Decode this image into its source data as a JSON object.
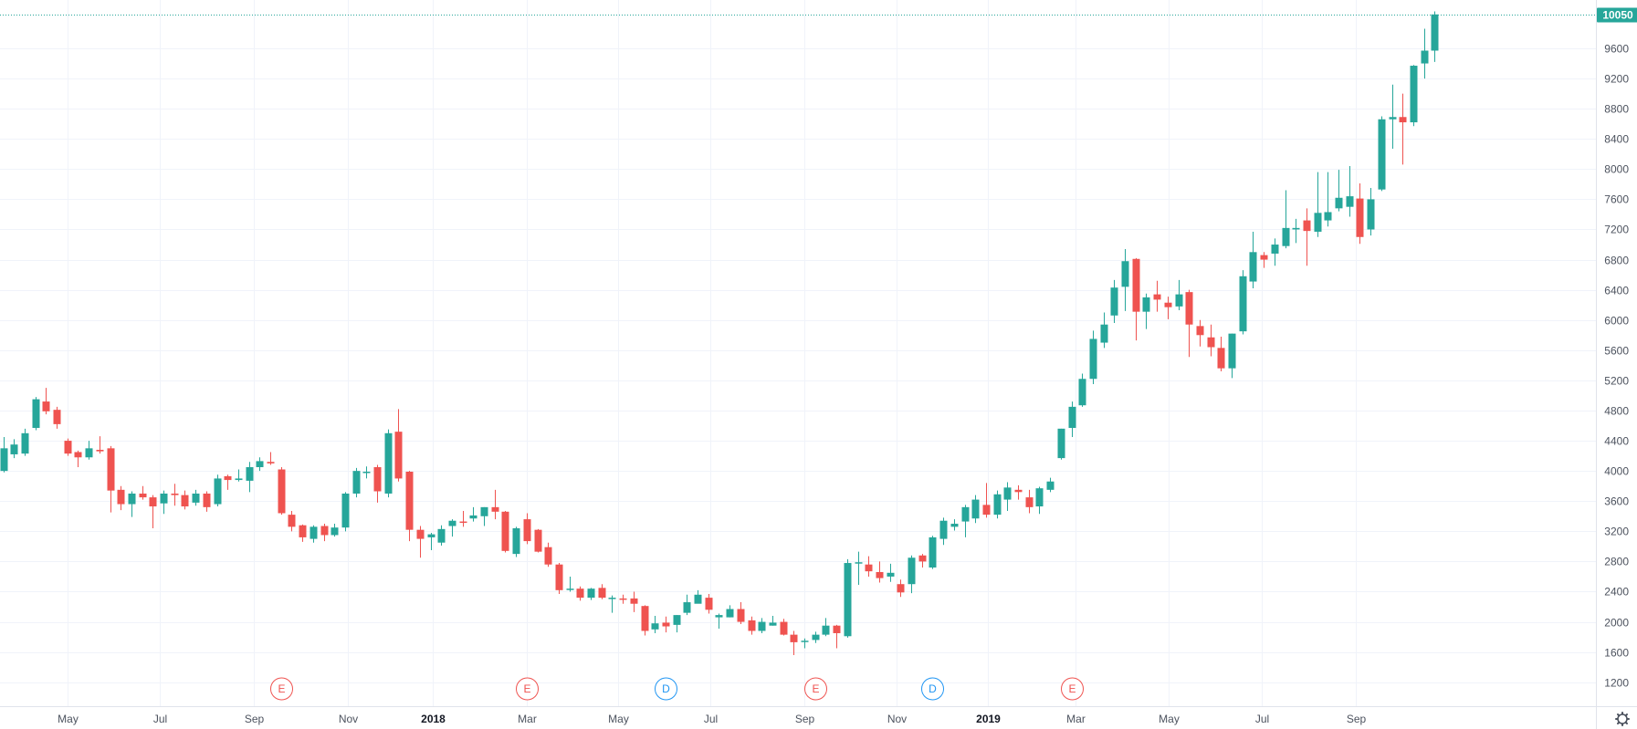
{
  "chart_data": {
    "type": "candlestick",
    "colors": {
      "up": "#26a69a",
      "down": "#ef5350",
      "grid": "#f0f3fa",
      "axis_text": "#4c525e",
      "last_price_line": "#26a69a",
      "earnings": "#ef5350",
      "dividend": "#2196f3"
    },
    "ylim": [
      1100,
      10120
    ],
    "yticks": [
      "1200",
      "1600",
      "2000",
      "2400",
      "2800",
      "3200",
      "3600",
      "4000",
      "4400",
      "4800",
      "5200",
      "5600",
      "6000",
      "6400",
      "6800",
      "7200",
      "7600",
      "8000",
      "8400",
      "8800",
      "9200",
      "9600"
    ],
    "xticks": [
      {
        "label": "May",
        "index": 6,
        "bold": false
      },
      {
        "label": "Jul",
        "index": 14.7,
        "bold": false
      },
      {
        "label": "Sep",
        "index": 23.5,
        "bold": false
      },
      {
        "label": "Nov",
        "index": 32.3,
        "bold": false
      },
      {
        "label": "2018",
        "index": 40.2,
        "bold": true
      },
      {
        "label": "Mar",
        "index": 49,
        "bold": false
      },
      {
        "label": "May",
        "index": 57.6,
        "bold": false
      },
      {
        "label": "Jul",
        "index": 66.2,
        "bold": false
      },
      {
        "label": "Sep",
        "index": 75,
        "bold": false
      },
      {
        "label": "Nov",
        "index": 83.6,
        "bold": false
      },
      {
        "label": "2019",
        "index": 92.2,
        "bold": true
      },
      {
        "label": "Mar",
        "index": 100.4,
        "bold": false
      },
      {
        "label": "May",
        "index": 109.1,
        "bold": false
      },
      {
        "label": "Jul",
        "index": 117.8,
        "bold": false
      },
      {
        "label": "Sep",
        "index": 126.6,
        "bold": false
      }
    ],
    "last_price": "10050",
    "events": [
      {
        "label": "E",
        "kind": "earnings",
        "index": 26
      },
      {
        "label": "E",
        "kind": "earnings",
        "index": 49
      },
      {
        "label": "D",
        "kind": "dividend",
        "index": 62
      },
      {
        "label": "E",
        "kind": "earnings",
        "index": 76
      },
      {
        "label": "D",
        "kind": "dividend",
        "index": 87
      },
      {
        "label": "E",
        "kind": "earnings",
        "index": 100
      }
    ],
    "candles": [
      [
        4000,
        4300,
        4450,
        3980
      ],
      [
        4220,
        4350,
        4420,
        4170
      ],
      [
        4230,
        4500,
        4560,
        4200
      ],
      [
        4570,
        4950,
        4980,
        4540
      ],
      [
        4920,
        4790,
        5100,
        4750
      ],
      [
        4810,
        4620,
        4850,
        4560
      ],
      [
        4400,
        4230,
        4430,
        4200
      ],
      [
        4250,
        4180,
        4270,
        4050
      ],
      [
        4180,
        4300,
        4400,
        4150
      ],
      [
        4280,
        4260,
        4460,
        4230
      ],
      [
        4300,
        3740,
        4330,
        3450
      ],
      [
        3750,
        3560,
        3800,
        3480
      ],
      [
        3560,
        3700,
        3730,
        3390
      ],
      [
        3700,
        3650,
        3800,
        3620
      ],
      [
        3650,
        3530,
        3680,
        3240
      ],
      [
        3570,
        3700,
        3740,
        3430
      ],
      [
        3700,
        3680,
        3830,
        3540
      ],
      [
        3680,
        3530,
        3740,
        3490
      ],
      [
        3580,
        3700,
        3750,
        3540
      ],
      [
        3700,
        3520,
        3730,
        3460
      ],
      [
        3560,
        3900,
        3950,
        3530
      ],
      [
        3930,
        3880,
        3950,
        3750
      ],
      [
        3880,
        3900,
        4020,
        3860
      ],
      [
        3870,
        4050,
        4120,
        3720
      ],
      [
        4050,
        4130,
        4180,
        4000
      ],
      [
        4120,
        4100,
        4250,
        4080
      ],
      [
        4020,
        3440,
        4050,
        3420
      ],
      [
        3420,
        3260,
        3470,
        3200
      ],
      [
        3280,
        3120,
        3290,
        3060
      ],
      [
        3100,
        3260,
        3280,
        3050
      ],
      [
        3270,
        3150,
        3300,
        3070
      ],
      [
        3150,
        3250,
        3300,
        3130
      ],
      [
        3250,
        3700,
        3720,
        3200
      ],
      [
        3700,
        4000,
        4040,
        3650
      ],
      [
        3990,
        3990,
        4060,
        3900
      ],
      [
        4050,
        3730,
        4080,
        3580
      ],
      [
        3700,
        4500,
        4550,
        3650
      ],
      [
        4520,
        3900,
        4820,
        3860
      ],
      [
        3990,
        3220,
        4000,
        3070
      ],
      [
        3220,
        3100,
        3270,
        2850
      ],
      [
        3120,
        3160,
        3180,
        2950
      ],
      [
        3050,
        3230,
        3280,
        3010
      ],
      [
        3270,
        3340,
        3360,
        3130
      ],
      [
        3330,
        3320,
        3470,
        3260
      ],
      [
        3370,
        3410,
        3520,
        3330
      ],
      [
        3400,
        3520,
        3520,
        3270
      ],
      [
        3520,
        3460,
        3750,
        3360
      ],
      [
        3460,
        2940,
        3470,
        2920
      ],
      [
        2900,
        3240,
        3260,
        2860
      ],
      [
        3360,
        3070,
        3440,
        3030
      ],
      [
        3220,
        2930,
        3230,
        2920
      ],
      [
        2990,
        2760,
        3050,
        2730
      ],
      [
        2760,
        2420,
        2780,
        2370
      ],
      [
        2440,
        2440,
        2600,
        2400
      ],
      [
        2440,
        2320,
        2470,
        2280
      ],
      [
        2320,
        2440,
        2450,
        2290
      ],
      [
        2450,
        2320,
        2500,
        2300
      ],
      [
        2310,
        2320,
        2350,
        2120
      ],
      [
        2310,
        2300,
        2360,
        2240
      ],
      [
        2310,
        2240,
        2400,
        2130
      ],
      [
        2210,
        1880,
        2220,
        1820
      ],
      [
        1900,
        1980,
        2080,
        1850
      ],
      [
        1990,
        1940,
        2070,
        1860
      ],
      [
        1960,
        2090,
        2090,
        1860
      ],
      [
        2120,
        2260,
        2360,
        2090
      ],
      [
        2240,
        2360,
        2420,
        2300
      ],
      [
        2320,
        2160,
        2370,
        2110
      ],
      [
        2060,
        2090,
        2110,
        1910
      ],
      [
        2060,
        2170,
        2220,
        2060
      ],
      [
        2170,
        2000,
        2260,
        1970
      ],
      [
        2020,
        1880,
        2070,
        1830
      ],
      [
        1880,
        2000,
        2050,
        1850
      ],
      [
        1950,
        1990,
        2080,
        1950
      ],
      [
        2000,
        1830,
        2040,
        1820
      ],
      [
        1830,
        1730,
        1880,
        1560
      ],
      [
        1740,
        1750,
        1780,
        1650
      ],
      [
        1760,
        1830,
        1870,
        1720
      ],
      [
        1830,
        1950,
        2050,
        1810
      ],
      [
        1950,
        1850,
        1960,
        1650
      ],
      [
        1810,
        2780,
        2830,
        1790
      ],
      [
        2780,
        2790,
        2930,
        2490
      ],
      [
        2760,
        2670,
        2870,
        2600
      ],
      [
        2660,
        2580,
        2800,
        2520
      ],
      [
        2600,
        2650,
        2770,
        2530
      ],
      [
        2500,
        2390,
        2560,
        2330
      ],
      [
        2500,
        2850,
        2880,
        2380
      ],
      [
        2880,
        2800,
        2900,
        2720
      ],
      [
        2720,
        3120,
        3140,
        2700
      ],
      [
        3100,
        3340,
        3380,
        3020
      ],
      [
        3260,
        3300,
        3360,
        3210
      ],
      [
        3330,
        3520,
        3550,
        3120
      ],
      [
        3370,
        3620,
        3680,
        3310
      ],
      [
        3550,
        3420,
        3840,
        3380
      ],
      [
        3420,
        3690,
        3740,
        3370
      ],
      [
        3620,
        3780,
        3850,
        3470
      ],
      [
        3750,
        3720,
        3810,
        3620
      ],
      [
        3650,
        3520,
        3750,
        3440
      ],
      [
        3530,
        3770,
        3790,
        3430
      ],
      [
        3750,
        3860,
        3910,
        3720
      ],
      [
        4170,
        4560,
        4560,
        4150
      ],
      [
        4570,
        4850,
        4920,
        4450
      ],
      [
        4870,
        5220,
        5290,
        4850
      ],
      [
        5220,
        5750,
        5860,
        5150
      ],
      [
        5700,
        5940,
        6100,
        5630
      ],
      [
        6060,
        6430,
        6530,
        5960
      ],
      [
        6440,
        6780,
        6940,
        6120
      ],
      [
        6810,
        6110,
        6820,
        5730
      ],
      [
        6110,
        6300,
        6350,
        5880
      ],
      [
        6340,
        6270,
        6520,
        6110
      ],
      [
        6230,
        6170,
        6310,
        6010
      ],
      [
        6180,
        6340,
        6530,
        6130
      ],
      [
        6370,
        5940,
        6400,
        5510
      ],
      [
        5920,
        5800,
        6000,
        5650
      ],
      [
        5770,
        5640,
        5940,
        5520
      ],
      [
        5630,
        5360,
        5780,
        5320
      ],
      [
        5360,
        5820,
        5820,
        5230
      ],
      [
        5850,
        6580,
        6660,
        5810
      ],
      [
        6510,
        6900,
        7170,
        6420
      ],
      [
        6860,
        6800,
        6900,
        6690
      ],
      [
        6880,
        7000,
        7080,
        6720
      ],
      [
        6980,
        7220,
        7720,
        6950
      ],
      [
        7200,
        7220,
        7340,
        7020
      ],
      [
        7320,
        7180,
        7480,
        6720
      ],
      [
        7170,
        7420,
        7960,
        7100
      ],
      [
        7320,
        7430,
        7960,
        7240
      ],
      [
        7480,
        7620,
        7990,
        7440
      ],
      [
        7500,
        7640,
        8040,
        7370
      ],
      [
        7610,
        7100,
        7810,
        7010
      ],
      [
        7200,
        7600,
        7750,
        7120
      ],
      [
        7730,
        8660,
        8700,
        7710
      ],
      [
        8660,
        8690,
        9120,
        8270
      ],
      [
        8690,
        8620,
        9000,
        8060
      ],
      [
        8620,
        9370,
        9380,
        8570
      ],
      [
        9400,
        9570,
        9860,
        9200
      ],
      [
        9570,
        10050,
        10090,
        9420
      ]
    ]
  }
}
